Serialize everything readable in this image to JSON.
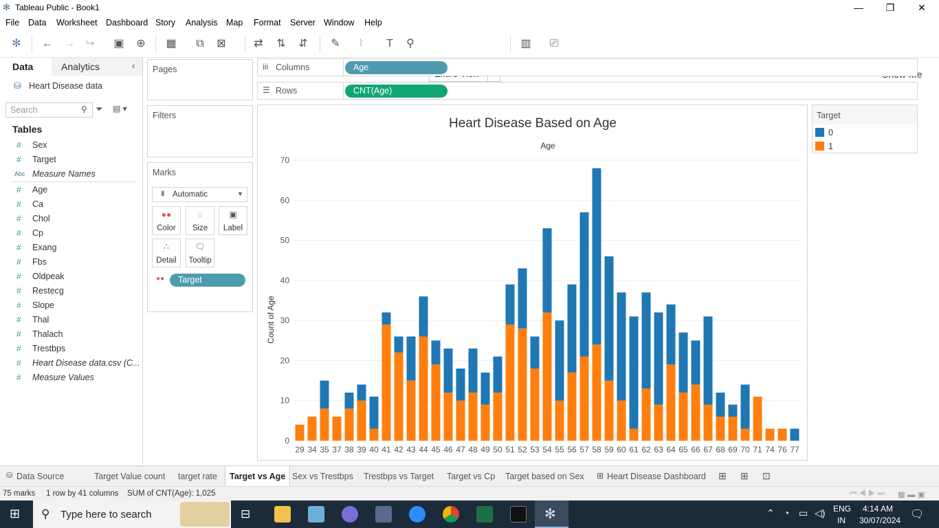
{
  "window": {
    "title": "Tableau Public - Book1"
  },
  "menu": [
    "File",
    "Data",
    "Worksheet",
    "Dashboard",
    "Story",
    "Analysis",
    "Map",
    "Format",
    "Server",
    "Window",
    "Help"
  ],
  "toolbar": {
    "fit": "Entire View",
    "show_me": "Show Me"
  },
  "left_pane": {
    "tabs": [
      "Data",
      "Analytics"
    ],
    "datasource": "Heart Disease data",
    "search_placeholder": "Search",
    "tables_heading": "Tables",
    "fields": [
      {
        "icon": "#",
        "label": "Sex",
        "italic": false
      },
      {
        "icon": "#",
        "label": "Target",
        "italic": false
      },
      {
        "icon": "Abc",
        "label": "Measure Names",
        "italic": true
      },
      {
        "icon": "#",
        "label": "Age",
        "italic": false
      },
      {
        "icon": "#",
        "label": "Ca",
        "italic": false
      },
      {
        "icon": "#",
        "label": "Chol",
        "italic": false
      },
      {
        "icon": "#",
        "label": "Cp",
        "italic": false
      },
      {
        "icon": "#",
        "label": "Exang",
        "italic": false
      },
      {
        "icon": "#",
        "label": "Fbs",
        "italic": false
      },
      {
        "icon": "#",
        "label": "Oldpeak",
        "italic": false
      },
      {
        "icon": "#",
        "label": "Restecg",
        "italic": false
      },
      {
        "icon": "#",
        "label": "Slope",
        "italic": false
      },
      {
        "icon": "#",
        "label": "Thal",
        "italic": false
      },
      {
        "icon": "#",
        "label": "Thalach",
        "italic": false
      },
      {
        "icon": "#",
        "label": "Trestbps",
        "italic": false
      },
      {
        "icon": "#",
        "label": "Heart Disease data.csv (C...",
        "italic": true
      },
      {
        "icon": "#",
        "label": "Measure Values",
        "italic": true
      }
    ]
  },
  "cards": {
    "pages": "Pages",
    "filters": "Filters",
    "marks": "Marks",
    "mark_type": "Automatic",
    "mark_buttons": [
      "Color",
      "Size",
      "Label",
      "Detail",
      "Tooltip"
    ],
    "color_pill": "Target"
  },
  "shelves": {
    "columns_label": "Columns",
    "columns_pill": "Age",
    "rows_label": "Rows",
    "rows_pill": "CNT(Age)"
  },
  "legend": {
    "title": "Target",
    "items": [
      {
        "label": "0",
        "color": "#1f77b4"
      },
      {
        "label": "1",
        "color": "#ff7f0e"
      }
    ]
  },
  "chart_data": {
    "type": "bar",
    "stacked": true,
    "title": "Heart Disease Based on Age",
    "header": "Age",
    "ylabel": "Count of Age",
    "ylim": [
      0,
      70
    ],
    "yticks": [
      0,
      10,
      20,
      30,
      40,
      50,
      60,
      70
    ],
    "categories": [
      "29",
      "34",
      "35",
      "37",
      "38",
      "39",
      "40",
      "41",
      "42",
      "43",
      "44",
      "45",
      "46",
      "47",
      "48",
      "49",
      "50",
      "51",
      "52",
      "53",
      "54",
      "55",
      "56",
      "57",
      "58",
      "59",
      "60",
      "61",
      "62",
      "63",
      "64",
      "65",
      "66",
      "67",
      "68",
      "69",
      "70",
      "71",
      "74",
      "76",
      "77"
    ],
    "series": [
      {
        "name": "1",
        "color": "#ff7f0e",
        "values": [
          4,
          6,
          8,
          6,
          8,
          10,
          3,
          29,
          22,
          15,
          26,
          19,
          12,
          10,
          12,
          9,
          12,
          29,
          28,
          18,
          32,
          10,
          17,
          21,
          24,
          15,
          10,
          3,
          13,
          9,
          19,
          12,
          14,
          9,
          6,
          6,
          3,
          11,
          3,
          3,
          0
        ]
      },
      {
        "name": "0",
        "color": "#1f77b4",
        "values": [
          0,
          0,
          7,
          0,
          4,
          4,
          8,
          3,
          4,
          11,
          10,
          6,
          11,
          8,
          11,
          8,
          9,
          10,
          15,
          8,
          21,
          20,
          22,
          36,
          44,
          31,
          27,
          28,
          24,
          23,
          15,
          15,
          11,
          22,
          6,
          3,
          11,
          0,
          0,
          0,
          3
        ]
      }
    ]
  },
  "sheet_tabs": [
    "Data Source",
    "Target Value count",
    "target rate",
    "Target vs Age",
    "Sex vs Trestbps",
    "Trestbps vs Target",
    "Target vs Cp",
    "Target based on Sex",
    "Heart Disease Dashboard"
  ],
  "active_sheet": "Target vs Age",
  "status": {
    "marks": "75 marks",
    "layout": "1 row by 41 columns",
    "sum": "SUM of CNT(Age): 1,025"
  },
  "taskbar": {
    "search_placeholder": "Type here to search",
    "lang1": "ENG",
    "lang2": "IN",
    "time": "4:14 AM",
    "date": "30/07/2024"
  }
}
